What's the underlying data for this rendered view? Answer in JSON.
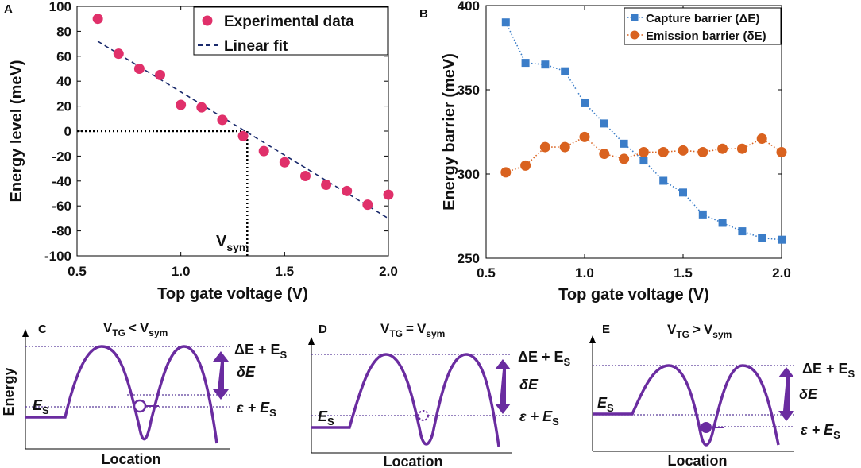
{
  "chart_data": [
    {
      "panel": "A",
      "type": "scatter",
      "x": [
        0.6,
        0.7,
        0.8,
        0.9,
        1.0,
        1.1,
        1.2,
        1.3,
        1.4,
        1.5,
        1.6,
        1.7,
        1.8,
        1.9,
        2.0
      ],
      "y": [
        90,
        62,
        50,
        45,
        21,
        19,
        9,
        -4,
        -16,
        -25,
        -36,
        -43,
        -48,
        -59,
        -51
      ],
      "fit": {
        "x": [
          0.6,
          2.0
        ],
        "y": [
          72,
          -70
        ]
      },
      "xlim": [
        0.5,
        2.0
      ],
      "ylim": [
        -100,
        100
      ],
      "xticks": [
        "0.5",
        "1.0",
        "1.5",
        "2.0"
      ],
      "xtick_values": [
        0.5,
        1.0,
        1.5,
        2.0
      ],
      "yticks": [
        "100",
        "80",
        "60",
        "40",
        "20",
        "0",
        "-20",
        "-40",
        "-60",
        "-80",
        "-100"
      ],
      "ytick_values": [
        100,
        80,
        60,
        40,
        20,
        0,
        -20,
        -40,
        -60,
        -80,
        -100
      ],
      "xlabel": "Top gate voltage (V)",
      "ylabel": "Energy level (meV)",
      "legend": [
        "Experimental data",
        "Linear fit"
      ],
      "vsym": 1.32,
      "vsym_label": "V",
      "vsym_sub": "sym",
      "colors": {
        "points": "#e0306a",
        "fit": "#1a2a6c"
      }
    },
    {
      "panel": "B",
      "type": "line",
      "x": [
        0.6,
        0.7,
        0.8,
        0.9,
        1.0,
        1.1,
        1.2,
        1.3,
        1.4,
        1.5,
        1.6,
        1.7,
        1.8,
        1.9,
        2.0
      ],
      "series": [
        {
          "name": "Capture barrier (ΔE)",
          "values": [
            390,
            366,
            365,
            361,
            342,
            330,
            318,
            308,
            296,
            289,
            276,
            271,
            266,
            262,
            261
          ],
          "color": "#3b7dc8",
          "marker": "square"
        },
        {
          "name": "Emission barrier (δE)",
          "values": [
            301,
            305,
            316,
            316,
            322,
            312,
            309,
            313,
            313,
            314,
            313,
            315,
            315,
            321,
            313
          ],
          "color": "#d9621f",
          "marker": "circle"
        }
      ],
      "xlim": [
        0.5,
        2.0
      ],
      "ylim": [
        250,
        400
      ],
      "xticks": [
        "0.5",
        "1.0",
        "1.5",
        "2.0"
      ],
      "xtick_values": [
        0.5,
        1.0,
        1.5,
        2.0
      ],
      "yticks": [
        "400",
        "350",
        "300",
        "250"
      ],
      "ytick_values": [
        400,
        350,
        300,
        250
      ],
      "xlabel": "Top gate voltage (V)",
      "ylabel": "Energy barrier (meV)"
    }
  ],
  "labels": {
    "panel_a": "A",
    "panel_b": "B",
    "panel_c": "C",
    "panel_d": "D",
    "panel_e": "E"
  },
  "diagrams": {
    "energy_label": "Energy",
    "location_label": "Location",
    "v_main": "V",
    "tg_sub": "TG",
    "sym_sub": "sym",
    "rel_c": "<",
    "rel_d": "=",
    "rel_e": ">",
    "es_main": "E",
    "es_sub": "S",
    "delta_e_top": "ΔE + E",
    "delta_small": "δE",
    "eps_bottom": "ε + E",
    "color": "#6a2ca0"
  }
}
